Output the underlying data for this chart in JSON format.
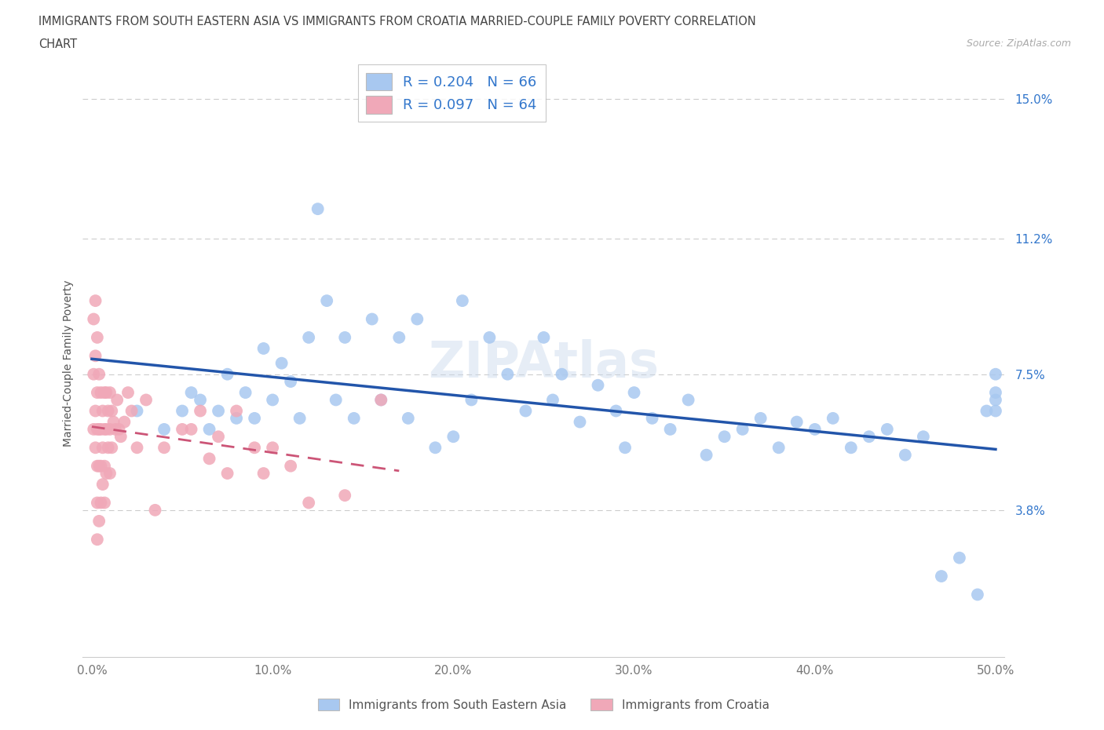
{
  "title_line1": "IMMIGRANTS FROM SOUTH EASTERN ASIA VS IMMIGRANTS FROM CROATIA MARRIED-COUPLE FAMILY POVERTY CORRELATION",
  "title_line2": "CHART",
  "source_text": "Source: ZipAtlas.com",
  "watermark": "ZIPAtlas",
  "ylabel": "Married-Couple Family Poverty",
  "xlim": [
    -0.005,
    0.505
  ],
  "ylim": [
    -0.002,
    0.158
  ],
  "xticks": [
    0.0,
    0.1,
    0.2,
    0.3,
    0.4,
    0.5
  ],
  "xticklabels": [
    "0.0%",
    "10.0%",
    "20.0%",
    "30.0%",
    "40.0%",
    "50.0%"
  ],
  "yticks": [
    0.038,
    0.075,
    0.112,
    0.15
  ],
  "yticklabels": [
    "3.8%",
    "7.5%",
    "11.2%",
    "15.0%"
  ],
  "r_sea": 0.204,
  "n_sea": 66,
  "r_cro": 0.097,
  "n_cro": 64,
  "color_sea": "#a8c8f0",
  "color_cro": "#f0a8b8",
  "color_trendline_sea": "#2255aa",
  "color_trendline_cro": "#cc5577",
  "legend_label_sea": "Immigrants from South Eastern Asia",
  "legend_label_cro": "Immigrants from Croatia",
  "sea_x": [
    0.025,
    0.04,
    0.05,
    0.055,
    0.06,
    0.065,
    0.07,
    0.075,
    0.08,
    0.085,
    0.09,
    0.095,
    0.1,
    0.105,
    0.11,
    0.115,
    0.12,
    0.125,
    0.13,
    0.135,
    0.14,
    0.145,
    0.155,
    0.16,
    0.17,
    0.175,
    0.18,
    0.19,
    0.2,
    0.205,
    0.21,
    0.22,
    0.23,
    0.24,
    0.25,
    0.255,
    0.26,
    0.27,
    0.28,
    0.29,
    0.295,
    0.3,
    0.31,
    0.32,
    0.33,
    0.34,
    0.35,
    0.36,
    0.37,
    0.38,
    0.39,
    0.4,
    0.41,
    0.42,
    0.43,
    0.44,
    0.45,
    0.46,
    0.47,
    0.48,
    0.49,
    0.495,
    0.5,
    0.5,
    0.5,
    0.5
  ],
  "sea_y": [
    0.065,
    0.06,
    0.065,
    0.07,
    0.068,
    0.06,
    0.065,
    0.075,
    0.063,
    0.07,
    0.063,
    0.082,
    0.068,
    0.078,
    0.073,
    0.063,
    0.085,
    0.12,
    0.095,
    0.068,
    0.085,
    0.063,
    0.09,
    0.068,
    0.085,
    0.063,
    0.09,
    0.055,
    0.058,
    0.095,
    0.068,
    0.085,
    0.075,
    0.065,
    0.085,
    0.068,
    0.075,
    0.062,
    0.072,
    0.065,
    0.055,
    0.07,
    0.063,
    0.06,
    0.068,
    0.053,
    0.058,
    0.06,
    0.063,
    0.055,
    0.062,
    0.06,
    0.063,
    0.055,
    0.058,
    0.06,
    0.053,
    0.058,
    0.02,
    0.025,
    0.015,
    0.065,
    0.068,
    0.075,
    0.065,
    0.07
  ],
  "cro_x": [
    0.001,
    0.001,
    0.001,
    0.002,
    0.002,
    0.002,
    0.002,
    0.003,
    0.003,
    0.003,
    0.003,
    0.003,
    0.003,
    0.004,
    0.004,
    0.004,
    0.004,
    0.005,
    0.005,
    0.005,
    0.005,
    0.006,
    0.006,
    0.006,
    0.007,
    0.007,
    0.007,
    0.007,
    0.008,
    0.008,
    0.008,
    0.009,
    0.009,
    0.01,
    0.01,
    0.01,
    0.011,
    0.011,
    0.012,
    0.013,
    0.014,
    0.015,
    0.016,
    0.018,
    0.02,
    0.022,
    0.025,
    0.03,
    0.035,
    0.04,
    0.05,
    0.055,
    0.06,
    0.065,
    0.07,
    0.075,
    0.08,
    0.09,
    0.095,
    0.1,
    0.11,
    0.12,
    0.14,
    0.16
  ],
  "cro_y": [
    0.09,
    0.075,
    0.06,
    0.095,
    0.08,
    0.065,
    0.055,
    0.085,
    0.07,
    0.06,
    0.05,
    0.04,
    0.03,
    0.075,
    0.06,
    0.05,
    0.035,
    0.07,
    0.06,
    0.05,
    0.04,
    0.065,
    0.055,
    0.045,
    0.07,
    0.06,
    0.05,
    0.04,
    0.07,
    0.06,
    0.048,
    0.065,
    0.055,
    0.07,
    0.06,
    0.048,
    0.065,
    0.055,
    0.062,
    0.06,
    0.068,
    0.06,
    0.058,
    0.062,
    0.07,
    0.065,
    0.055,
    0.068,
    0.038,
    0.055,
    0.06,
    0.06,
    0.065,
    0.052,
    0.058,
    0.048,
    0.065,
    0.055,
    0.048,
    0.055,
    0.05,
    0.04,
    0.042,
    0.068
  ]
}
